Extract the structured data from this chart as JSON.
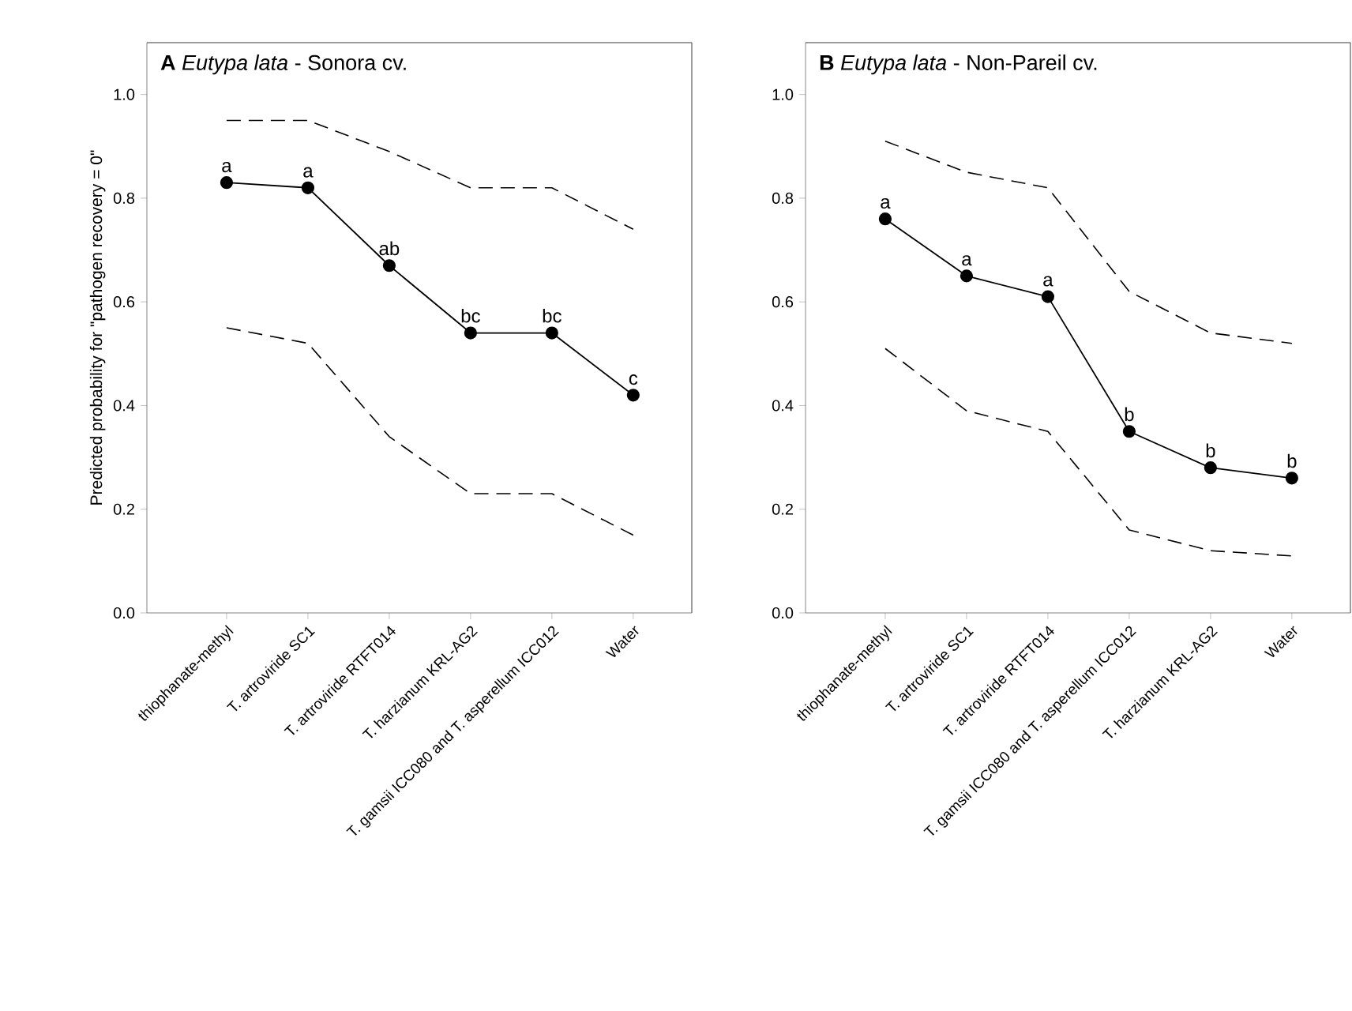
{
  "chart_data": [
    {
      "type": "line",
      "title": "**A**   *Eutypa lata* - Sonora cv.",
      "ylabel": "Predicted probability for \"pathogen recovery = 0\"",
      "categories": [
        "thiophanate-methyl",
        "T. artroviride SC1",
        "T. artroviride RTFT014",
        "T. harzianum KRL-AG2",
        "T. gamsii ICC080 and T. asperellum ICC012",
        "Water"
      ],
      "ylim": [
        0,
        1.1
      ],
      "yticks": [
        {
          "value": 0,
          "label": "0.0"
        },
        {
          "value": 0.2,
          "label": "0.2"
        },
        {
          "value": 0.4,
          "label": "0.4"
        },
        {
          "value": 0.6,
          "label": "0.6"
        },
        {
          "value": 0.8,
          "label": "0.8"
        },
        {
          "value": 1.0,
          "label": "1.0"
        }
      ],
      "series": [
        {
          "color": "#000000",
          "marker": "circle",
          "line_style": "solid",
          "values": [
            0.83,
            0.82,
            0.67,
            0.54,
            0.54,
            0.42
          ],
          "value_labels": [
            "a",
            "a",
            "ab",
            "bc",
            "bc",
            "c"
          ]
        },
        {
          "color": "#000000",
          "marker": "none",
          "line_style": "dashed",
          "values": [
            0.95,
            0.95,
            0.89,
            0.82,
            0.82,
            0.74
          ]
        },
        {
          "color": "#000000",
          "marker": "none",
          "line_style": "dashed",
          "values": [
            0.55,
            0.52,
            0.34,
            0.23,
            0.23,
            0.15
          ]
        }
      ]
    },
    {
      "type": "line",
      "title": "**B**   *Eutypa lata* - Non-Pareil cv.",
      "categories": [
        "thiophanate-methyl",
        "T. artroviride SC1",
        "T. artroviride RTFT014",
        "T. gamsii ICC080 and T. asperellum ICC012",
        "T. harzianum KRL-AG2",
        "Water"
      ],
      "ylim": [
        0,
        1.1
      ],
      "yticks": [
        {
          "value": 0,
          "label": "0.0"
        },
        {
          "value": 0.2,
          "label": "0.2"
        },
        {
          "value": 0.4,
          "label": "0.4"
        },
        {
          "value": 0.6,
          "label": "0.6"
        },
        {
          "value": 0.8,
          "label": "0.8"
        },
        {
          "value": 1.0,
          "label": "1.0"
        }
      ],
      "series": [
        {
          "color": "#000000",
          "marker": "circle",
          "line_style": "solid",
          "values": [
            0.76,
            0.65,
            0.61,
            0.35,
            0.28,
            0.26
          ],
          "value_labels": [
            "a",
            "a",
            "a",
            "b",
            "b",
            "b"
          ]
        },
        {
          "color": "#000000",
          "marker": "none",
          "line_style": "dashed",
          "values": [
            0.91,
            0.85,
            0.82,
            0.62,
            0.54,
            0.52
          ]
        },
        {
          "color": "#000000",
          "marker": "none",
          "line_style": "dashed",
          "values": [
            0.51,
            0.39,
            0.35,
            0.16,
            0.12,
            0.11
          ]
        }
      ]
    }
  ]
}
